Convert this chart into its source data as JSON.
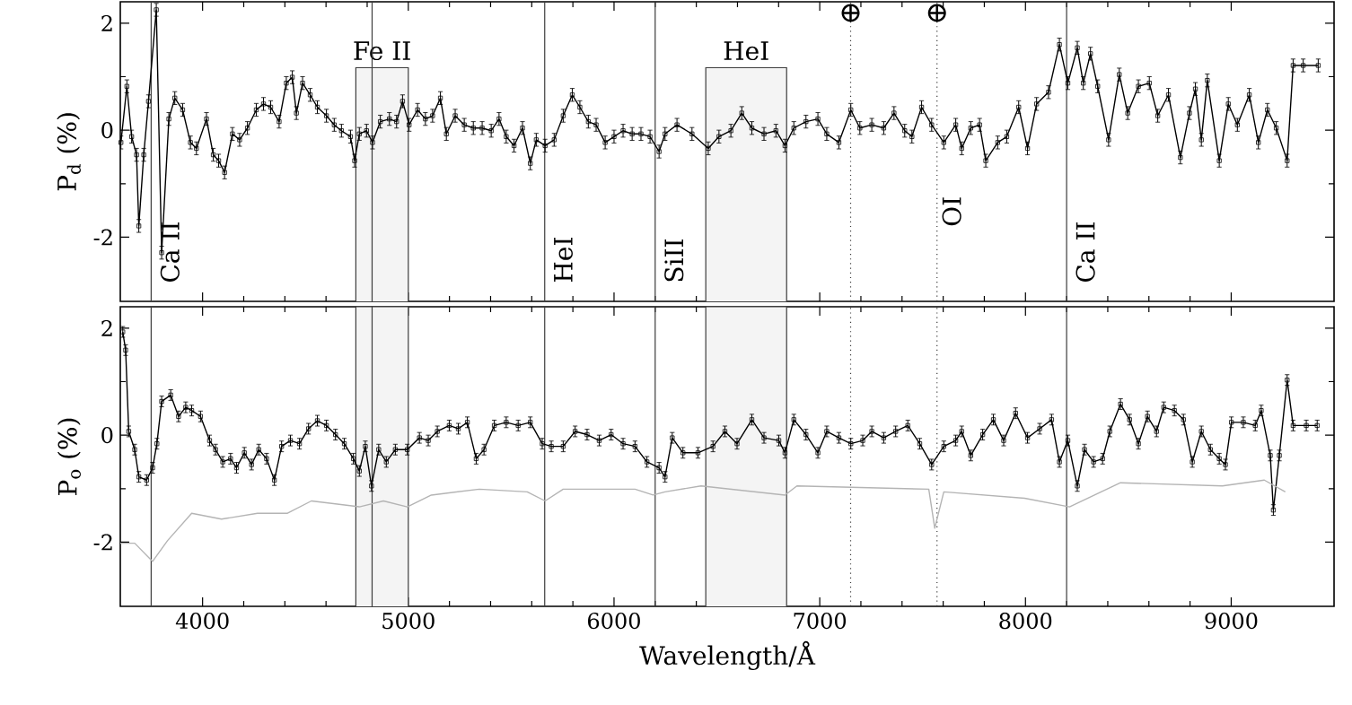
{
  "chart_data": [
    {
      "type": "line",
      "ylabel": "P$_{d}$ (%)",
      "marker": "square",
      "tick_labels": "y",
      "xlim": [
        3600,
        9500
      ],
      "xticks": [
        4000,
        5000,
        6000,
        7000,
        8000,
        9000
      ],
      "ylim": [
        -3.2,
        2.4
      ],
      "yticks": [
        -2,
        0,
        2
      ],
      "series": [
        {
          "color": "#000000",
          "x": [
            3603,
            3632,
            3655,
            3679,
            3690,
            3714,
            3737,
            3775,
            3801,
            3836,
            3865,
            3903,
            3941,
            3970,
            4019,
            4052,
            4078,
            4107,
            4145,
            4180,
            4218,
            4261,
            4296,
            4331,
            4372,
            4407,
            4436,
            4456,
            4486,
            4523,
            4558,
            4602,
            4640,
            4675,
            4719,
            4739,
            4762,
            4797,
            4826,
            4864,
            4908,
            4943,
            4972,
            5004,
            5045,
            5083,
            5118,
            5156,
            5185,
            5228,
            5272,
            5316,
            5359,
            5403,
            5441,
            5476,
            5514,
            5555,
            5593,
            5622,
            5665,
            5709,
            5753,
            5797,
            5834,
            5875,
            5913,
            5957,
            6000,
            6044,
            6088,
            6131,
            6175,
            6219,
            6248,
            6306,
            6379,
            6458,
            6510,
            6568,
            6621,
            6670,
            6729,
            6787,
            6831,
            6874,
            6933,
            6991,
            7034,
            7093,
            7151,
            7195,
            7253,
            7311,
            7361,
            7413,
            7448,
            7495,
            7544,
            7603,
            7661,
            7690,
            7734,
            7777,
            7807,
            7865,
            7909,
            7967,
            8010,
            8054,
            8112,
            8165,
            8206,
            8252,
            8281,
            8316,
            8351,
            8404,
            8456,
            8497,
            8549,
            8602,
            8643,
            8695,
            8753,
            8797,
            8826,
            8855,
            8884,
            8942,
            8986,
            9030,
            9088,
            9132,
            9176,
            9219,
            9272,
            9301,
            9350,
            9423
          ],
          "values": [
            -0.23,
            0.82,
            -0.12,
            -0.46,
            -1.79,
            -0.46,
            0.54,
            2.25,
            -2.29,
            0.21,
            0.6,
            0.38,
            -0.23,
            -0.34,
            0.21,
            -0.46,
            -0.57,
            -0.79,
            -0.07,
            -0.18,
            0.04,
            0.38,
            0.49,
            0.43,
            0.16,
            0.88,
            0.99,
            0.32,
            0.88,
            0.66,
            0.43,
            0.27,
            0.1,
            -0.01,
            -0.12,
            -0.57,
            -0.07,
            -0.01,
            -0.23,
            0.16,
            0.21,
            0.16,
            0.54,
            0.1,
            0.38,
            0.21,
            0.27,
            0.6,
            -0.07,
            0.27,
            0.1,
            0.04,
            0.04,
            -0.01,
            0.21,
            -0.12,
            -0.29,
            0.04,
            -0.62,
            -0.18,
            -0.29,
            -0.18,
            0.27,
            0.66,
            0.43,
            0.16,
            0.1,
            -0.23,
            -0.12,
            -0.01,
            -0.07,
            -0.07,
            -0.12,
            -0.4,
            -0.07,
            0.1,
            -0.07,
            -0.34,
            -0.12,
            -0.01,
            0.32,
            0.04,
            -0.07,
            -0.01,
            -0.29,
            0.04,
            0.16,
            0.21,
            -0.07,
            -0.23,
            0.38,
            0.04,
            0.1,
            0.04,
            0.32,
            -0.01,
            -0.12,
            0.43,
            0.1,
            -0.23,
            0.1,
            -0.34,
            0.04,
            0.1,
            -0.57,
            -0.23,
            -0.12,
            0.43,
            -0.34,
            0.49,
            0.71,
            1.6,
            0.88,
            1.54,
            0.88,
            1.43,
            0.82,
            -0.18,
            1.04,
            0.32,
            0.82,
            0.88,
            0.27,
            0.66,
            -0.51,
            0.32,
            0.77,
            -0.18,
            0.93,
            -0.57,
            0.49,
            0.1,
            0.66,
            -0.23,
            0.38,
            0.04,
            -0.57,
            1.21,
            1.21,
            1.21
          ],
          "errors": [
            0.12,
            0.12,
            0.12,
            0.12,
            0.12,
            0.12,
            0.12,
            0.12,
            0.12,
            0.12,
            0.12,
            0.12,
            0.12,
            0.12,
            0.12,
            0.12,
            0.12,
            0.12,
            0.12,
            0.12,
            0.12,
            0.12,
            0.12,
            0.12,
            0.12,
            0.12,
            0.12,
            0.12,
            0.12,
            0.12,
            0.12,
            0.12,
            0.12,
            0.12,
            0.12,
            0.12,
            0.12,
            0.12,
            0.12,
            0.12,
            0.12,
            0.12,
            0.12,
            0.12,
            0.12,
            0.12,
            0.12,
            0.12,
            0.12,
            0.12,
            0.12,
            0.12,
            0.12,
            0.12,
            0.12,
            0.12,
            0.12,
            0.12,
            0.12,
            0.12,
            0.12,
            0.12,
            0.12,
            0.12,
            0.12,
            0.12,
            0.12,
            0.12,
            0.12,
            0.12,
            0.12,
            0.12,
            0.12,
            0.12,
            0.12,
            0.12,
            0.12,
            0.12,
            0.12,
            0.12,
            0.12,
            0.12,
            0.12,
            0.12,
            0.12,
            0.12,
            0.12,
            0.12,
            0.12,
            0.12,
            0.12,
            0.12,
            0.12,
            0.12,
            0.12,
            0.12,
            0.12,
            0.12,
            0.12,
            0.12,
            0.12,
            0.12,
            0.12,
            0.12,
            0.12,
            0.12,
            0.12,
            0.12,
            0.12,
            0.12,
            0.12,
            0.12,
            0.12,
            0.12,
            0.12,
            0.12,
            0.12,
            0.12,
            0.12,
            0.12,
            0.12,
            0.12,
            0.12,
            0.12,
            0.12,
            0.12,
            0.12,
            0.12,
            0.12,
            0.12,
            0.12,
            0.12,
            0.12,
            0.12,
            0.12,
            0.12,
            0.12,
            0.12,
            0.12,
            0.12
          ]
        }
      ],
      "ref_lines": [
        {
          "axis": "x",
          "value": 3750,
          "label": "Ca II",
          "color": "#3c3c3c"
        },
        {
          "axis": "x",
          "value": 4824,
          "color": "#3c3c3c"
        },
        {
          "axis": "x",
          "value": 5663,
          "label": "HeI",
          "color": "#3c3c3c"
        },
        {
          "axis": "x",
          "value": 6200,
          "label": "SiII",
          "color": "#3c3c3c"
        },
        {
          "axis": "x",
          "value": 7150,
          "label": "⊕",
          "line_style": "dotted",
          "color": "#3c3c3c"
        },
        {
          "axis": "x",
          "value": 7570,
          "label": "⊕",
          "line_style": "dotted",
          "color": "#3c3c3c"
        },
        {
          "axis": "x",
          "value": 8200,
          "label": "Ca II",
          "color": "#3c3c3c"
        }
      ],
      "bands": [
        {
          "axis": "x",
          "from": 4745,
          "to": 5000,
          "label": "Fe II",
          "color": "#f4f4f4"
        },
        {
          "axis": "x",
          "from": 6446,
          "to": 6839,
          "label": "HeI",
          "color": "#f4f4f4"
        }
      ],
      "annotations": [
        "OI"
      ]
    },
    {
      "type": "line",
      "ylabel": "P$_{o}$ (%)",
      "xlabel": "Wavelength/Å",
      "marker": "square",
      "xlim": [
        3600,
        9500
      ],
      "xticks": [
        4000,
        5000,
        6000,
        7000,
        8000,
        9000
      ],
      "ylim": [
        -3.2,
        2.4
      ],
      "yticks": [
        -2,
        0,
        2
      ],
      "series": [
        {
          "color": "#000000",
          "x": [
            3612,
            3626,
            3641,
            3670,
            3690,
            3728,
            3757,
            3778,
            3801,
            3845,
            3883,
            3918,
            3947,
            3990,
            4034,
            4063,
            4098,
            4136,
            4165,
            4203,
            4238,
            4273,
            4311,
            4349,
            4384,
            4427,
            4471,
            4515,
            4558,
            4602,
            4646,
            4689,
            4733,
            4762,
            4791,
            4821,
            4856,
            4893,
            4937,
            4995,
            5054,
            5097,
            5141,
            5199,
            5243,
            5287,
            5330,
            5368,
            5418,
            5476,
            5534,
            5593,
            5651,
            5695,
            5753,
            5811,
            5869,
            5928,
            5986,
            6044,
            6102,
            6160,
            6219,
            6248,
            6283,
            6335,
            6408,
            6481,
            6539,
            6598,
            6670,
            6729,
            6801,
            6831,
            6874,
            6933,
            6991,
            7034,
            7093,
            7151,
            7209,
            7253,
            7311,
            7369,
            7428,
            7486,
            7544,
            7603,
            7661,
            7690,
            7734,
            7792,
            7844,
            7894,
            7952,
            8010,
            8069,
            8127,
            8165,
            8206,
            8252,
            8287,
            8331,
            8375,
            8410,
            8462,
            8506,
            8549,
            8593,
            8637,
            8672,
            8724,
            8768,
            8811,
            8855,
            8899,
            8942,
            8972,
            9001,
            9059,
            9117,
            9146,
            9190,
            9205,
            9234,
            9272,
            9301,
            9365,
            9418
          ],
          "values": [
            1.93,
            1.59,
            0.07,
            -0.27,
            -0.78,
            -0.84,
            -0.61,
            -0.16,
            0.63,
            0.75,
            0.35,
            0.52,
            0.46,
            0.35,
            -0.1,
            -0.27,
            -0.5,
            -0.44,
            -0.61,
            -0.33,
            -0.55,
            -0.27,
            -0.44,
            -0.84,
            -0.21,
            -0.1,
            -0.16,
            0.12,
            0.27,
            0.18,
            0.01,
            -0.16,
            -0.44,
            -0.67,
            -0.21,
            -0.95,
            -0.27,
            -0.5,
            -0.27,
            -0.27,
            -0.05,
            -0.1,
            0.07,
            0.18,
            0.12,
            0.24,
            -0.44,
            -0.27,
            0.18,
            0.24,
            0.18,
            0.24,
            -0.16,
            -0.21,
            -0.21,
            0.07,
            0.01,
            -0.1,
            0.01,
            -0.16,
            -0.21,
            -0.5,
            -0.61,
            -0.78,
            -0.05,
            -0.33,
            -0.33,
            -0.21,
            0.07,
            -0.16,
            0.29,
            -0.05,
            -0.1,
            -0.33,
            0.29,
            0.01,
            -0.33,
            0.07,
            -0.05,
            -0.16,
            -0.1,
            0.07,
            -0.05,
            0.07,
            0.18,
            -0.16,
            -0.55,
            -0.21,
            -0.1,
            0.07,
            -0.38,
            0.01,
            0.29,
            -0.1,
            0.41,
            -0.05,
            0.12,
            0.29,
            -0.5,
            -0.1,
            -0.95,
            -0.27,
            -0.5,
            -0.44,
            0.07,
            0.58,
            0.29,
            -0.16,
            0.35,
            0.07,
            0.52,
            0.46,
            0.29,
            -0.5,
            0.07,
            -0.27,
            -0.44,
            -0.55,
            0.24,
            0.24,
            0.18,
            0.46,
            -0.38,
            -1.4,
            -0.38,
            1.03,
            0.18,
            0.18,
            0.18
          ],
          "errors": [
            0.1,
            0.1,
            0.1,
            0.1,
            0.1,
            0.1,
            0.1,
            0.1,
            0.1,
            0.1,
            0.1,
            0.1,
            0.1,
            0.1,
            0.1,
            0.1,
            0.1,
            0.1,
            0.1,
            0.1,
            0.1,
            0.1,
            0.1,
            0.1,
            0.1,
            0.1,
            0.1,
            0.1,
            0.1,
            0.1,
            0.1,
            0.1,
            0.1,
            0.1,
            0.1,
            0.1,
            0.1,
            0.1,
            0.1,
            0.1,
            0.1,
            0.1,
            0.1,
            0.1,
            0.1,
            0.1,
            0.1,
            0.1,
            0.1,
            0.1,
            0.1,
            0.1,
            0.1,
            0.1,
            0.1,
            0.1,
            0.1,
            0.1,
            0.1,
            0.1,
            0.1,
            0.1,
            0.1,
            0.1,
            0.1,
            0.1,
            0.1,
            0.1,
            0.1,
            0.1,
            0.1,
            0.1,
            0.1,
            0.1,
            0.1,
            0.1,
            0.1,
            0.1,
            0.1,
            0.1,
            0.1,
            0.1,
            0.1,
            0.1,
            0.1,
            0.1,
            0.1,
            0.1,
            0.1,
            0.1,
            0.1,
            0.1,
            0.1,
            0.1,
            0.1,
            0.1,
            0.1,
            0.1,
            0.1,
            0.1,
            0.1,
            0.1,
            0.1,
            0.1,
            0.1,
            0.1,
            0.1,
            0.1,
            0.1,
            0.1,
            0.1,
            0.1,
            0.1,
            0.1,
            0.1,
            0.1,
            0.1,
            0.1,
            0.1,
            0.1,
            0.1,
            0.1,
            0.1,
            0.1,
            0.1,
            0.1,
            0.1,
            0.1,
            0.1
          ]
        },
        {
          "color": "#b4b4b4",
          "marker": "none",
          "x": [
            3600,
            3670,
            3757,
            3830,
            3947,
            4092,
            4267,
            4413,
            4529,
            4762,
            4879,
            4995,
            5112,
            5345,
            5578,
            5665,
            5753,
            6102,
            6190,
            6248,
            6423,
            6831,
            6889,
            7530,
            7559,
            7603,
            7996,
            8214,
            8462,
            8957,
            9161,
            9263
          ],
          "values": [
            -2.02,
            -2.02,
            -2.36,
            -1.97,
            -1.46,
            -1.57,
            -1.46,
            -1.46,
            -1.23,
            -1.34,
            -1.23,
            -1.34,
            -1.12,
            -1.01,
            -1.06,
            -1.23,
            -1.01,
            -1.01,
            -1.12,
            -1.06,
            -0.95,
            -1.12,
            -0.95,
            -1.01,
            -1.74,
            -1.06,
            -1.18,
            -1.34,
            -0.89,
            -0.95,
            -0.84,
            -1.06
          ]
        }
      ],
      "ref_lines": [
        {
          "axis": "x",
          "value": 3750,
          "color": "#3c3c3c"
        },
        {
          "axis": "x",
          "value": 4824,
          "color": "#3c3c3c"
        },
        {
          "axis": "x",
          "value": 5663,
          "color": "#3c3c3c"
        },
        {
          "axis": "x",
          "value": 6200,
          "color": "#3c3c3c"
        },
        {
          "axis": "x",
          "value": 7150,
          "line_style": "dotted",
          "color": "#3c3c3c"
        },
        {
          "axis": "x",
          "value": 7570,
          "line_style": "dotted",
          "color": "#3c3c3c"
        },
        {
          "axis": "x",
          "value": 8200,
          "color": "#3c3c3c"
        }
      ],
      "bands": [
        {
          "axis": "x",
          "from": 4745,
          "to": 5000,
          "color": "#f4f4f4"
        },
        {
          "axis": "x",
          "from": 6446,
          "to": 6839,
          "color": "#f4f4f4"
        }
      ]
    }
  ]
}
